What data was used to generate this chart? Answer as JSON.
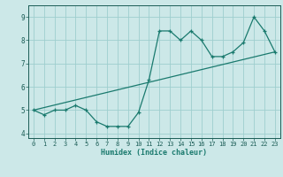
{
  "x": [
    0,
    1,
    2,
    3,
    4,
    5,
    6,
    7,
    8,
    9,
    10,
    11,
    12,
    13,
    14,
    15,
    16,
    17,
    18,
    19,
    20,
    21,
    22,
    23
  ],
  "y_curve": [
    5.0,
    4.8,
    5.0,
    5.0,
    5.2,
    5.0,
    4.5,
    4.3,
    4.3,
    4.3,
    4.9,
    6.3,
    8.4,
    8.4,
    8.0,
    8.4,
    8.0,
    7.3,
    7.3,
    7.5,
    7.9,
    9.0,
    8.4,
    7.5
  ],
  "trend_x": [
    0,
    23
  ],
  "trend_y": [
    5.0,
    7.5
  ],
  "color": "#1a7a6e",
  "bg_color": "#cce8e8",
  "grid_color": "#9ecece",
  "xlabel": "Humidex (Indice chaleur)",
  "xlim": [
    -0.5,
    23.5
  ],
  "ylim": [
    3.8,
    9.5
  ],
  "yticks": [
    4,
    5,
    6,
    7,
    8,
    9
  ],
  "xticks": [
    0,
    1,
    2,
    3,
    4,
    5,
    6,
    7,
    8,
    9,
    10,
    11,
    12,
    13,
    14,
    15,
    16,
    17,
    18,
    19,
    20,
    21,
    22,
    23
  ]
}
